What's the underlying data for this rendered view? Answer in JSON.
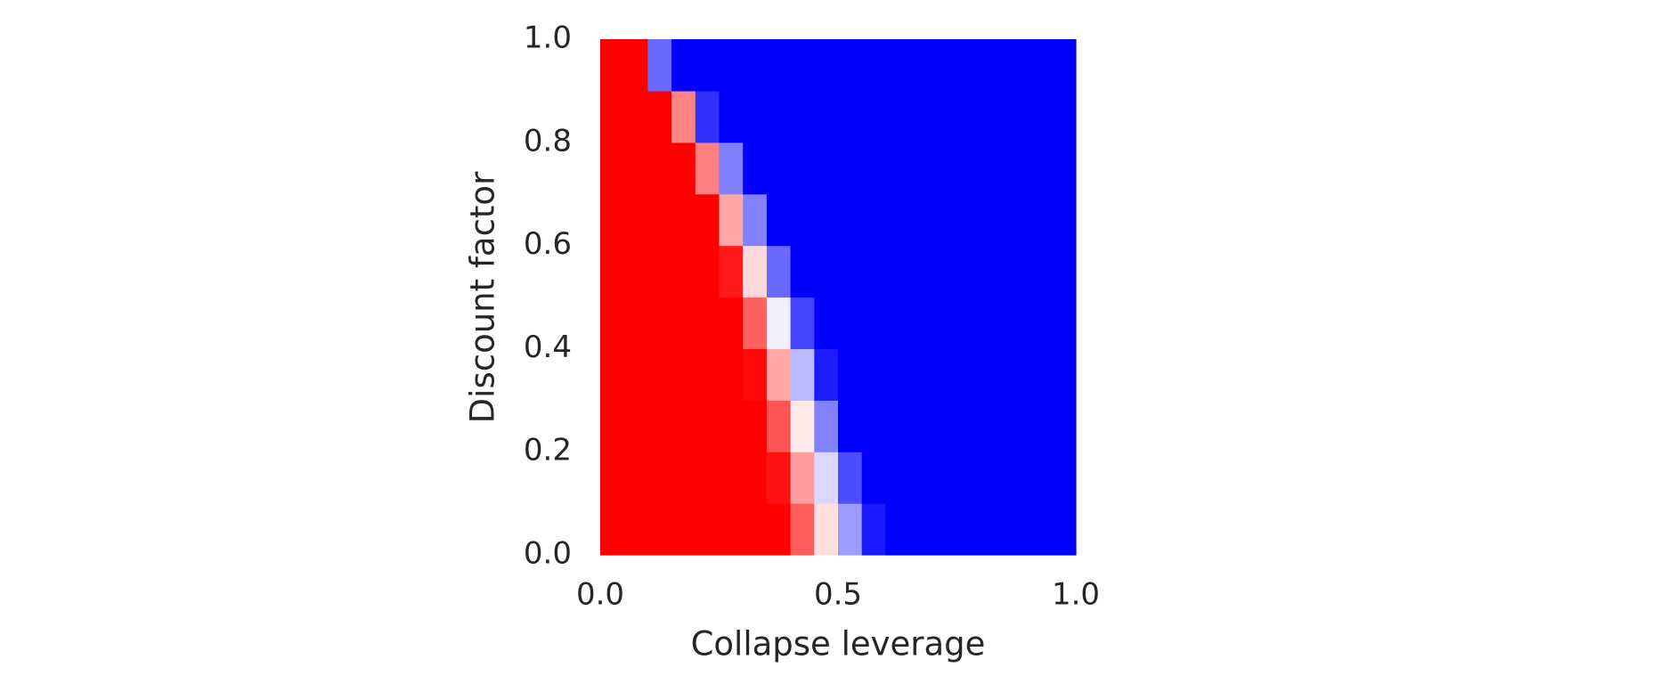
{
  "chart_data": {
    "type": "heatmap",
    "xlabel": "Collapse leverage",
    "ylabel": "Discount factor",
    "xlim": [
      0,
      1
    ],
    "ylim": [
      0,
      1
    ],
    "xticks": [
      {
        "value": 0,
        "label": "0.0"
      },
      0.5,
      {
        "value": 1,
        "label": "1.0"
      }
    ],
    "yticks": [
      {
        "value": 0,
        "label": "0.0"
      },
      0.2,
      0.4,
      0.6,
      0.8,
      {
        "value": 1,
        "label": "1.0"
      }
    ],
    "cmap": [
      "#ff0000",
      "#ffffff",
      "#0000ff"
    ],
    "zlim": [
      -1,
      1
    ],
    "x": [
      0.025,
      0.075,
      0.125,
      0.175,
      0.225,
      0.275,
      0.325,
      0.375,
      0.425,
      0.475,
      0.525,
      0.575,
      0.625,
      0.675,
      0.725,
      0.775,
      0.825,
      0.875,
      0.925,
      0.975
    ],
    "y": [
      0.05,
      0.15,
      0.25,
      0.35,
      0.45,
      0.55,
      0.65,
      0.75,
      0.85,
      0.95
    ],
    "z": [
      [
        -1,
        -1,
        -1,
        -1,
        -1,
        -1,
        -1,
        -1,
        -0.64,
        -0.13,
        0.39,
        0.9,
        1,
        1,
        1,
        1,
        1,
        1,
        1,
        1
      ],
      [
        -1,
        -1,
        -1,
        -1,
        -1,
        -1,
        -1,
        -0.93,
        -0.39,
        0.15,
        0.7,
        1,
        1,
        1,
        1,
        1,
        1,
        1,
        1,
        1
      ],
      [
        -1,
        -1,
        -1,
        -1,
        -1,
        -1,
        -1,
        -0.67,
        -0.09,
        0.49,
        1,
        1,
        1,
        1,
        1,
        1,
        1,
        1,
        1,
        1
      ],
      [
        -1,
        -1,
        -1,
        -1,
        -1,
        -1,
        -0.97,
        -0.35,
        0.27,
        0.89,
        1,
        1,
        1,
        1,
        1,
        1,
        1,
        1,
        1,
        1
      ],
      [
        -1,
        -1,
        -1,
        -1,
        -1,
        -1,
        -0.62,
        0.06,
        0.73,
        1,
        1,
        1,
        1,
        1,
        1,
        1,
        1,
        1,
        1,
        1
      ],
      [
        -1,
        -1,
        -1,
        -1,
        -1,
        -0.9,
        -0.15,
        0.59,
        1,
        1,
        1,
        1,
        1,
        1,
        1,
        1,
        1,
        1,
        1,
        1
      ],
      [
        -1,
        -1,
        -1,
        -1,
        -1,
        -0.35,
        0.49,
        1,
        1,
        1,
        1,
        1,
        1,
        1,
        1,
        1,
        1,
        1,
        1,
        1
      ],
      [
        -1,
        -1,
        -1,
        -1,
        -0.5,
        0.5,
        1,
        1,
        1,
        1,
        1,
        1,
        1,
        1,
        1,
        1,
        1,
        1,
        1,
        1
      ],
      [
        -1,
        -1,
        -1,
        -0.48,
        0.81,
        1,
        1,
        1,
        1,
        1,
        1,
        1,
        1,
        1,
        1,
        1,
        1,
        1,
        1,
        1
      ],
      [
        -1,
        -1,
        0.59,
        1,
        1,
        1,
        1,
        1,
        1,
        1,
        1,
        1,
        1,
        1,
        1,
        1,
        1,
        1,
        1,
        1
      ]
    ]
  }
}
